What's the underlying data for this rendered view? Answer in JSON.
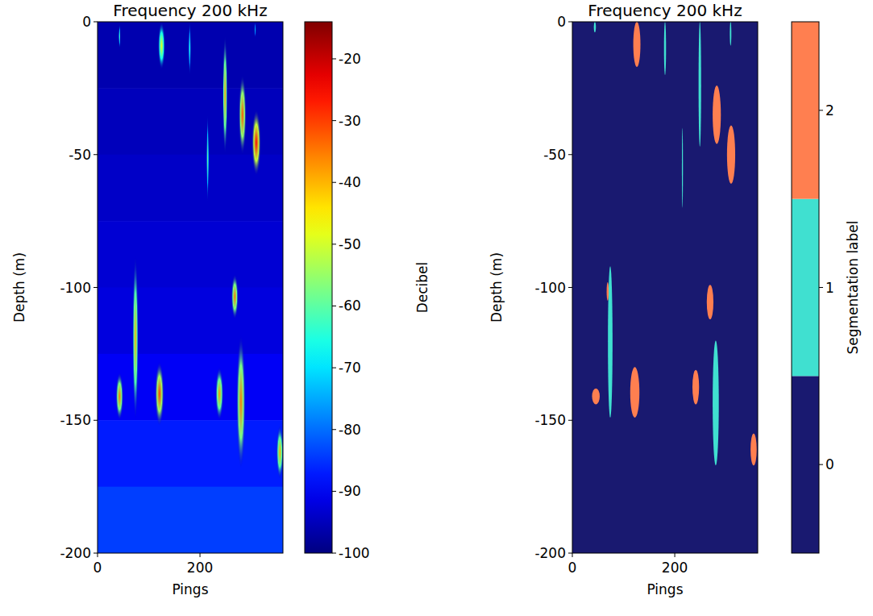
{
  "chart_data": [
    {
      "type": "heatmap",
      "title": "Frequency 200 kHz",
      "x_label": "Pings",
      "y_label": "Depth (m)",
      "xlim": [
        0,
        362
      ],
      "ylim": [
        -200,
        0
      ],
      "xticks": [
        0,
        200
      ],
      "yticks": [
        0,
        -50,
        -100,
        -150,
        -200
      ],
      "colorbar": {
        "label": "Decibel",
        "range": [
          -100,
          -14
        ],
        "ticks": [
          -20,
          -30,
          -40,
          -50,
          -60,
          -70,
          -80,
          -90,
          -100
        ]
      },
      "background": {
        "depth_top": [
          0,
          -25,
          -50,
          -75,
          -100,
          -125,
          -150,
          -175
        ],
        "depth_bottom": [
          -25,
          -50,
          -75,
          -100,
          -125,
          -150,
          -175,
          -200
        ],
        "values": [
          -96,
          -95,
          -94,
          -93,
          -92,
          -90,
          -87,
          -84
        ]
      },
      "schools": [
        {
          "ping": 43,
          "width": 4,
          "depth_top": -1,
          "depth_bottom": -10,
          "value": -62
        },
        {
          "ping": 125,
          "width": 14,
          "depth_top": 0,
          "depth_bottom": -18,
          "value": -48
        },
        {
          "ping": 180,
          "width": 5,
          "depth_top": 0,
          "depth_bottom": -20,
          "value": -65
        },
        {
          "ping": 308,
          "width": 3,
          "depth_top": 0,
          "depth_bottom": -6,
          "value": -70
        },
        {
          "ping": 249,
          "width": 10,
          "depth_top": -5,
          "depth_bottom": -50,
          "value": -38
        },
        {
          "ping": 283,
          "width": 15,
          "depth_top": -20,
          "depth_bottom": -50,
          "value": -32
        },
        {
          "ping": 310,
          "width": 18,
          "depth_top": -33,
          "depth_bottom": -58,
          "value": -25
        },
        {
          "ping": 215,
          "width": 5,
          "depth_top": -35,
          "depth_bottom": -68,
          "value": -60
        },
        {
          "ping": 74,
          "width": 12,
          "depth_top": -88,
          "depth_bottom": -150,
          "value": -40
        },
        {
          "ping": 43,
          "width": 15,
          "depth_top": -132,
          "depth_bottom": -150,
          "value": -35
        },
        {
          "ping": 121,
          "width": 18,
          "depth_top": -128,
          "depth_bottom": -152,
          "value": -30
        },
        {
          "ping": 268,
          "width": 14,
          "depth_top": -95,
          "depth_bottom": -112,
          "value": -35
        },
        {
          "ping": 238,
          "width": 16,
          "depth_top": -130,
          "depth_bottom": -150,
          "value": -38
        },
        {
          "ping": 280,
          "width": 18,
          "depth_top": -118,
          "depth_bottom": -168,
          "value": -35
        },
        {
          "ping": 356,
          "width": 14,
          "depth_top": -152,
          "depth_bottom": -172,
          "value": -40
        }
      ]
    },
    {
      "type": "segmentation",
      "title": "Frequency 200 kHz",
      "x_label": "Pings",
      "y_label": "Depth (m)",
      "xlim": [
        0,
        362
      ],
      "ylim": [
        -200,
        0
      ],
      "xticks": [
        0,
        200
      ],
      "yticks": [
        0,
        -50,
        -100,
        -150,
        -200
      ],
      "colorbar": {
        "label": "Segmentation label",
        "range": [
          -0.5,
          2.5
        ],
        "ticks": [
          0,
          1,
          2
        ],
        "colors": [
          "#191970",
          "#40e0d0",
          "#ff7f50"
        ]
      },
      "regions": [
        {
          "label": 1,
          "ping": 44,
          "width": 4,
          "depth_top": 0,
          "depth_bottom": -4
        },
        {
          "label": 2,
          "ping": 126,
          "width": 14,
          "depth_top": 0,
          "depth_bottom": -17
        },
        {
          "label": 1,
          "ping": 181,
          "width": 4,
          "depth_top": 0,
          "depth_bottom": -20
        },
        {
          "label": 1,
          "ping": 249,
          "width": 5,
          "depth_top": 0,
          "depth_bottom": -47
        },
        {
          "label": 1,
          "ping": 309,
          "width": 3,
          "depth_top": 0,
          "depth_bottom": -9
        },
        {
          "label": 2,
          "ping": 282,
          "width": 16,
          "depth_top": -24,
          "depth_bottom": -46
        },
        {
          "label": 2,
          "ping": 310,
          "width": 16,
          "depth_top": -39,
          "depth_bottom": -61
        },
        {
          "label": 1,
          "ping": 215,
          "width": 2,
          "depth_top": -40,
          "depth_bottom": -70
        },
        {
          "label": 1,
          "ping": 74,
          "width": 9,
          "depth_top": -92,
          "depth_bottom": -149
        },
        {
          "label": 2,
          "ping": 69,
          "width": 4,
          "depth_top": -98,
          "depth_bottom": -105
        },
        {
          "label": 2,
          "ping": 46,
          "width": 15,
          "depth_top": -138,
          "depth_bottom": -144
        },
        {
          "label": 2,
          "ping": 122,
          "width": 18,
          "depth_top": -130,
          "depth_bottom": -149
        },
        {
          "label": 2,
          "ping": 269,
          "width": 13,
          "depth_top": -99,
          "depth_bottom": -112
        },
        {
          "label": 2,
          "ping": 241,
          "width": 13,
          "depth_top": -131,
          "depth_bottom": -144
        },
        {
          "label": 1,
          "ping": 280,
          "width": 12,
          "depth_top": -120,
          "depth_bottom": -167
        },
        {
          "label": 2,
          "ping": 354,
          "width": 12,
          "depth_top": -155,
          "depth_bottom": -167
        }
      ]
    }
  ]
}
